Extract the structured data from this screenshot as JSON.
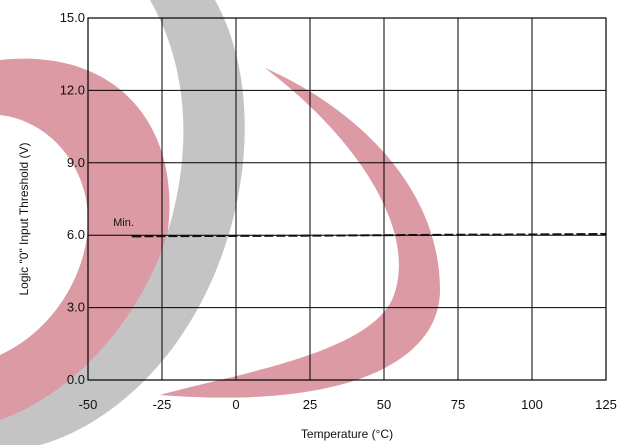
{
  "chart_data": {
    "type": "line",
    "xlabel": "Temperature (°C)",
    "ylabel": "Logic \"0\" Input Threshold (V)",
    "xlim": [
      -50,
      125
    ],
    "ylim": [
      0,
      15
    ],
    "x_ticks": [
      "-50",
      "-25",
      "0",
      "25",
      "50",
      "75",
      "100",
      "125"
    ],
    "y_ticks": [
      "0.0",
      "3.0",
      "6.0",
      "9.0",
      "12.0",
      "15.0"
    ],
    "grid": true,
    "series": [
      {
        "name": "Min.",
        "style": "dashed",
        "x": [
          -35,
          -25,
          0,
          25,
          50,
          75,
          100,
          125
        ],
        "y": [
          5.95,
          5.96,
          5.97,
          5.98,
          6.0,
          6.02,
          6.03,
          6.05
        ]
      }
    ],
    "annotations": [
      {
        "text": "Min.",
        "x": -38,
        "y": 6.3
      }
    ]
  },
  "watermark": {
    "colors": {
      "gray": "#c4c4c4",
      "pink": "#dc9aa4"
    }
  },
  "colors": {
    "grid": "#000000",
    "series": "#111111"
  }
}
